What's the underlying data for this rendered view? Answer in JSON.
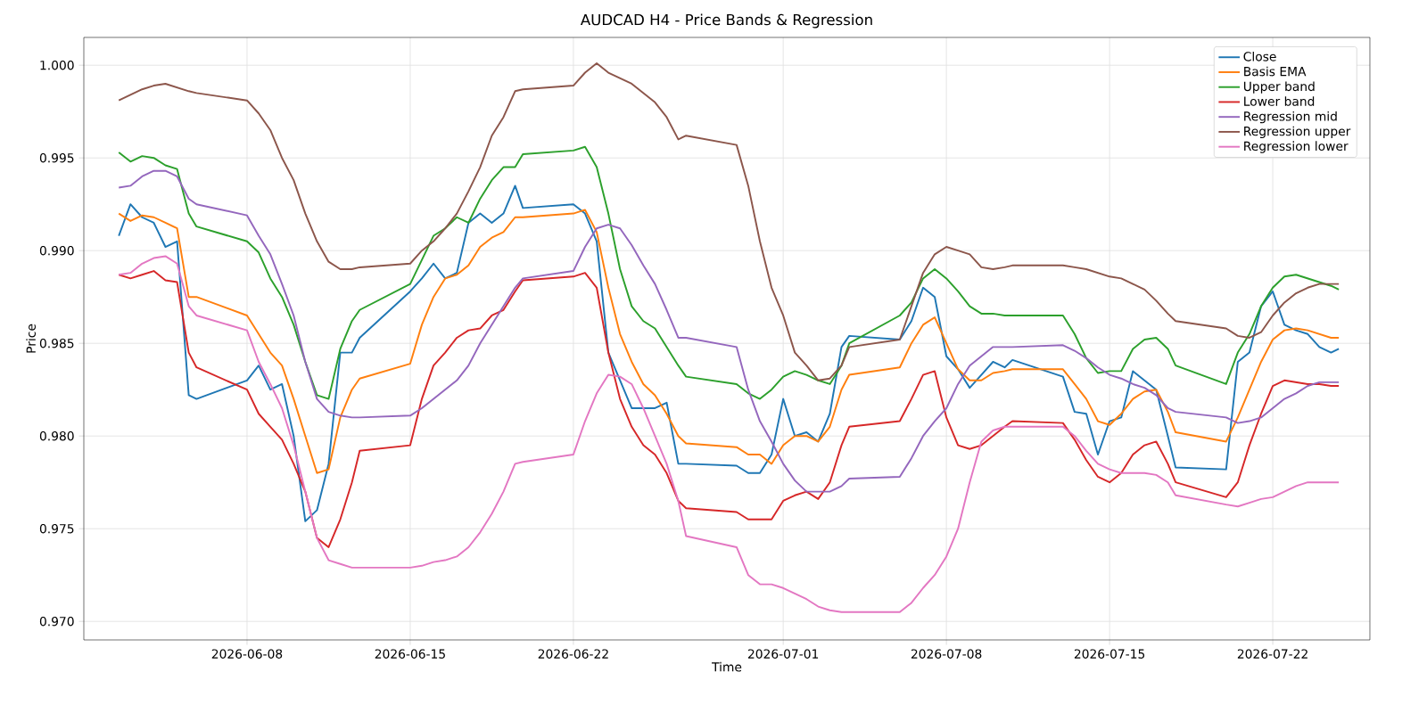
{
  "chart_data": {
    "type": "line",
    "title": "AUDCAD H4 - Price Bands & Regression",
    "xlabel": "Time",
    "ylabel": "Price",
    "x": [
      "2026-06-02T12:00",
      "2026-06-03T00:00",
      "2026-06-03T12:00",
      "2026-06-04T00:00",
      "2026-06-04T12:00",
      "2026-06-05T00:00",
      "2026-06-05T12:00",
      "2026-06-05T20:00",
      "2026-06-08T00:00",
      "2026-06-08T12:00",
      "2026-06-09T00:00",
      "2026-06-09T12:00",
      "2026-06-10T00:00",
      "2026-06-10T12:00",
      "2026-06-11T00:00",
      "2026-06-11T12:00",
      "2026-06-12T00:00",
      "2026-06-12T12:00",
      "2026-06-12T20:00",
      "2026-06-15T00:00",
      "2026-06-15T12:00",
      "2026-06-16T00:00",
      "2026-06-16T12:00",
      "2026-06-17T00:00",
      "2026-06-17T12:00",
      "2026-06-18T00:00",
      "2026-06-18T12:00",
      "2026-06-19T00:00",
      "2026-06-19T12:00",
      "2026-06-19T20:00",
      "2026-06-22T00:00",
      "2026-06-22T12:00",
      "2026-06-23T00:00",
      "2026-06-23T12:00",
      "2026-06-24T00:00",
      "2026-06-24T12:00",
      "2026-06-25T00:00",
      "2026-06-25T12:00",
      "2026-06-26T00:00",
      "2026-06-26T12:00",
      "2026-06-26T20:00",
      "2026-06-29T00:00",
      "2026-06-29T12:00",
      "2026-06-30T00:00",
      "2026-06-30T12:00",
      "2026-07-01T00:00",
      "2026-07-01T12:00",
      "2026-07-02T00:00",
      "2026-07-02T12:00",
      "2026-07-03T00:00",
      "2026-07-03T12:00",
      "2026-07-03T20:00",
      "2026-07-06T00:00",
      "2026-07-06T12:00",
      "2026-07-07T00:00",
      "2026-07-07T12:00",
      "2026-07-08T00:00",
      "2026-07-08T12:00",
      "2026-07-09T00:00",
      "2026-07-09T12:00",
      "2026-07-10T00:00",
      "2026-07-10T12:00",
      "2026-07-10T20:00",
      "2026-07-13T00:00",
      "2026-07-13T12:00",
      "2026-07-14T00:00",
      "2026-07-14T12:00",
      "2026-07-15T00:00",
      "2026-07-15T12:00",
      "2026-07-16T00:00",
      "2026-07-16T12:00",
      "2026-07-17T00:00",
      "2026-07-17T12:00",
      "2026-07-17T20:00",
      "2026-07-20T00:00",
      "2026-07-20T12:00",
      "2026-07-21T00:00",
      "2026-07-21T12:00",
      "2026-07-22T00:00",
      "2026-07-22T12:00",
      "2026-07-23T00:00",
      "2026-07-23T12:00",
      "2026-07-24T00:00",
      "2026-07-24T12:00",
      "2026-07-24T20:00"
    ],
    "series": [
      {
        "name": "Close",
        "color": "#1f77b4",
        "values": [
          0.9908,
          0.9925,
          0.9918,
          0.9915,
          0.9902,
          0.9905,
          0.9822,
          0.982,
          0.983,
          0.9838,
          0.9825,
          0.9828,
          0.98,
          0.9754,
          0.976,
          0.9785,
          0.9845,
          0.9845,
          0.9853,
          0.9878,
          0.9885,
          0.9893,
          0.9885,
          0.9888,
          0.9915,
          0.992,
          0.9915,
          0.992,
          0.9935,
          0.9923,
          0.9925,
          0.992,
          0.9905,
          0.9845,
          0.983,
          0.9815,
          0.9815,
          0.9815,
          0.9818,
          0.9785,
          0.9785,
          0.9784,
          0.978,
          0.978,
          0.979,
          0.982,
          0.98,
          0.9802,
          0.9797,
          0.9812,
          0.9848,
          0.9854,
          0.9852,
          0.9862,
          0.988,
          0.9875,
          0.9843,
          0.9836,
          0.9826,
          0.9833,
          0.984,
          0.9837,
          0.9841,
          0.9832,
          0.9813,
          0.9812,
          0.979,
          0.9808,
          0.981,
          0.9835,
          0.983,
          0.9825,
          0.98,
          0.9783,
          0.9782,
          0.984,
          0.9845,
          0.987,
          0.9878,
          0.986,
          0.9857,
          0.9855,
          0.9848,
          0.9845,
          0.9847
        ]
      },
      {
        "name": "Basis EMA",
        "color": "#ff7f0e",
        "values": [
          0.992,
          0.9916,
          0.9919,
          0.9918,
          0.9915,
          0.9912,
          0.9875,
          0.9875,
          0.9865,
          0.9855,
          0.9845,
          0.9838,
          0.982,
          0.98,
          0.978,
          0.9782,
          0.981,
          0.9825,
          0.9831,
          0.9839,
          0.986,
          0.9875,
          0.9885,
          0.9887,
          0.9892,
          0.9902,
          0.9907,
          0.991,
          0.9918,
          0.9918,
          0.992,
          0.9922,
          0.991,
          0.988,
          0.9855,
          0.984,
          0.9828,
          0.9822,
          0.9812,
          0.98,
          0.9796,
          0.9794,
          0.979,
          0.979,
          0.9785,
          0.9795,
          0.98,
          0.98,
          0.9797,
          0.9805,
          0.9825,
          0.9833,
          0.9837,
          0.985,
          0.986,
          0.9864,
          0.985,
          0.9836,
          0.983,
          0.983,
          0.9834,
          0.9835,
          0.9836,
          0.9836,
          0.9828,
          0.982,
          0.9808,
          0.9806,
          0.9812,
          0.982,
          0.9824,
          0.9825,
          0.9813,
          0.9802,
          0.9797,
          0.981,
          0.9825,
          0.984,
          0.9852,
          0.9857,
          0.9858,
          0.9857,
          0.9855,
          0.9853,
          0.9853
        ]
      },
      {
        "name": "Upper band",
        "color": "#2ca02c",
        "values": [
          0.9953,
          0.9948,
          0.9951,
          0.995,
          0.9946,
          0.9944,
          0.992,
          0.9913,
          0.9905,
          0.9899,
          0.9885,
          0.9875,
          0.986,
          0.984,
          0.9822,
          0.982,
          0.9847,
          0.9862,
          0.9868,
          0.9882,
          0.9895,
          0.9908,
          0.9912,
          0.9918,
          0.9915,
          0.9928,
          0.9938,
          0.9945,
          0.9945,
          0.9952,
          0.9954,
          0.9956,
          0.9945,
          0.992,
          0.989,
          0.987,
          0.9862,
          0.9858,
          0.9848,
          0.9838,
          0.9832,
          0.9828,
          0.9823,
          0.982,
          0.9825,
          0.9832,
          0.9835,
          0.9833,
          0.983,
          0.9828,
          0.9838,
          0.985,
          0.9865,
          0.9872,
          0.9885,
          0.989,
          0.9885,
          0.9878,
          0.987,
          0.9866,
          0.9866,
          0.9865,
          0.9865,
          0.9865,
          0.9855,
          0.9842,
          0.9834,
          0.9835,
          0.9835,
          0.9847,
          0.9852,
          0.9853,
          0.9847,
          0.9838,
          0.9828,
          0.9845,
          0.9855,
          0.987,
          0.988,
          0.9886,
          0.9887,
          0.9885,
          0.9883,
          0.9881,
          0.9879
        ]
      },
      {
        "name": "Lower band",
        "color": "#d62728",
        "values": [
          0.9887,
          0.9885,
          0.9887,
          0.9889,
          0.9884,
          0.9883,
          0.9845,
          0.9837,
          0.9825,
          0.9812,
          0.9805,
          0.9798,
          0.9785,
          0.977,
          0.9745,
          0.974,
          0.9755,
          0.9775,
          0.9792,
          0.9795,
          0.982,
          0.9838,
          0.9845,
          0.9853,
          0.9857,
          0.9858,
          0.9865,
          0.9868,
          0.9878,
          0.9884,
          0.9886,
          0.9888,
          0.988,
          0.9845,
          0.982,
          0.9805,
          0.9795,
          0.979,
          0.978,
          0.9765,
          0.9761,
          0.9759,
          0.9755,
          0.9755,
          0.9755,
          0.9765,
          0.9768,
          0.977,
          0.9766,
          0.9775,
          0.9795,
          0.9805,
          0.9808,
          0.982,
          0.9833,
          0.9835,
          0.981,
          0.9795,
          0.9793,
          0.9795,
          0.98,
          0.9805,
          0.9808,
          0.9807,
          0.9798,
          0.9787,
          0.9778,
          0.9775,
          0.978,
          0.979,
          0.9795,
          0.9797,
          0.9785,
          0.9775,
          0.9767,
          0.9775,
          0.9795,
          0.9812,
          0.9827,
          0.983,
          0.9829,
          0.9828,
          0.9828,
          0.9827,
          0.9827
        ]
      },
      {
        "name": "Regression mid",
        "color": "#9467bd",
        "values": [
          0.9934,
          0.9935,
          0.994,
          0.9943,
          0.9943,
          0.994,
          0.9928,
          0.9925,
          0.9919,
          0.9908,
          0.9898,
          0.9882,
          0.9865,
          0.984,
          0.982,
          0.9813,
          0.9811,
          0.981,
          0.981,
          0.9811,
          0.9815,
          0.982,
          0.9825,
          0.983,
          0.9838,
          0.985,
          0.986,
          0.987,
          0.988,
          0.9885,
          0.9889,
          0.9902,
          0.9912,
          0.9914,
          0.9912,
          0.9903,
          0.9892,
          0.9882,
          0.9868,
          0.9853,
          0.9853,
          0.9848,
          0.9825,
          0.9808,
          0.9797,
          0.9785,
          0.9776,
          0.977,
          0.977,
          0.977,
          0.9773,
          0.9777,
          0.9778,
          0.9788,
          0.98,
          0.9808,
          0.9815,
          0.9828,
          0.9838,
          0.9843,
          0.9848,
          0.9848,
          0.9848,
          0.9849,
          0.9846,
          0.9842,
          0.9837,
          0.9833,
          0.9831,
          0.9828,
          0.9826,
          0.9822,
          0.9815,
          0.9813,
          0.981,
          0.9807,
          0.9808,
          0.981,
          0.9815,
          0.982,
          0.9823,
          0.9827,
          0.9829,
          0.9829,
          0.9829
        ]
      },
      {
        "name": "Regression upper",
        "color": "#8c564b",
        "values": [
          0.9981,
          0.9984,
          0.9987,
          0.9989,
          0.999,
          0.9988,
          0.9986,
          0.9985,
          0.9981,
          0.9974,
          0.9965,
          0.995,
          0.9938,
          0.992,
          0.9905,
          0.9894,
          0.989,
          0.989,
          0.9891,
          0.9893,
          0.99,
          0.9905,
          0.9912,
          0.992,
          0.9932,
          0.9945,
          0.9962,
          0.9972,
          0.9986,
          0.9987,
          0.9989,
          0.9996,
          1.0001,
          0.9996,
          0.9993,
          0.999,
          0.9985,
          0.998,
          0.9972,
          0.996,
          0.9962,
          0.9957,
          0.9935,
          0.9905,
          0.988,
          0.9865,
          0.9845,
          0.9838,
          0.983,
          0.9831,
          0.9838,
          0.9848,
          0.9852,
          0.987,
          0.9888,
          0.9898,
          0.9902,
          0.99,
          0.9898,
          0.9891,
          0.989,
          0.9891,
          0.9892,
          0.9892,
          0.9891,
          0.989,
          0.9888,
          0.9886,
          0.9885,
          0.9882,
          0.9879,
          0.9873,
          0.9866,
          0.9862,
          0.9858,
          0.9854,
          0.9853,
          0.9856,
          0.9865,
          0.9872,
          0.9877,
          0.988,
          0.9882,
          0.9882,
          0.9882
        ]
      },
      {
        "name": "Regression lower",
        "color": "#e377c2",
        "values": [
          0.9887,
          0.9888,
          0.9893,
          0.9896,
          0.9897,
          0.9893,
          0.987,
          0.9865,
          0.9857,
          0.984,
          0.9828,
          0.9815,
          0.9795,
          0.977,
          0.9745,
          0.9733,
          0.9731,
          0.9729,
          0.9729,
          0.9729,
          0.973,
          0.9732,
          0.9733,
          0.9735,
          0.974,
          0.9748,
          0.9758,
          0.977,
          0.9785,
          0.9786,
          0.979,
          0.9808,
          0.9823,
          0.9833,
          0.9832,
          0.9828,
          0.9815,
          0.98,
          0.9785,
          0.9765,
          0.9746,
          0.974,
          0.9725,
          0.972,
          0.972,
          0.9718,
          0.9715,
          0.9712,
          0.9708,
          0.9706,
          0.9705,
          0.9705,
          0.9705,
          0.971,
          0.9718,
          0.9725,
          0.9735,
          0.975,
          0.9775,
          0.9797,
          0.9803,
          0.9805,
          0.9805,
          0.9805,
          0.98,
          0.9792,
          0.9785,
          0.9782,
          0.978,
          0.978,
          0.978,
          0.9779,
          0.9775,
          0.9768,
          0.9763,
          0.9762,
          0.9764,
          0.9766,
          0.9767,
          0.977,
          0.9773,
          0.9775,
          0.9775,
          0.9775,
          0.9775
        ]
      }
    ],
    "xlim": [
      "2026-06-01T00:00",
      "2026-07-26T04:00"
    ],
    "xticks": [
      "2026-06-08",
      "2026-06-15",
      "2026-06-22",
      "2026-07-01",
      "2026-07-08",
      "2026-07-15",
      "2026-07-22"
    ],
    "ylim": [
      0.969,
      1.0015
    ],
    "yticks": [
      {
        "value": 0.97,
        "label": "0.970"
      },
      {
        "value": 0.975,
        "label": "0.975"
      },
      {
        "value": 0.98,
        "label": "0.980"
      },
      {
        "value": 0.985,
        "label": "0.985"
      },
      {
        "value": 0.99,
        "label": "0.990"
      },
      {
        "value": 0.995,
        "label": "0.995"
      },
      {
        "value": 1.0,
        "label": "1.000"
      }
    ],
    "grid": true,
    "legend": "top right",
    "line_style": "solid"
  }
}
